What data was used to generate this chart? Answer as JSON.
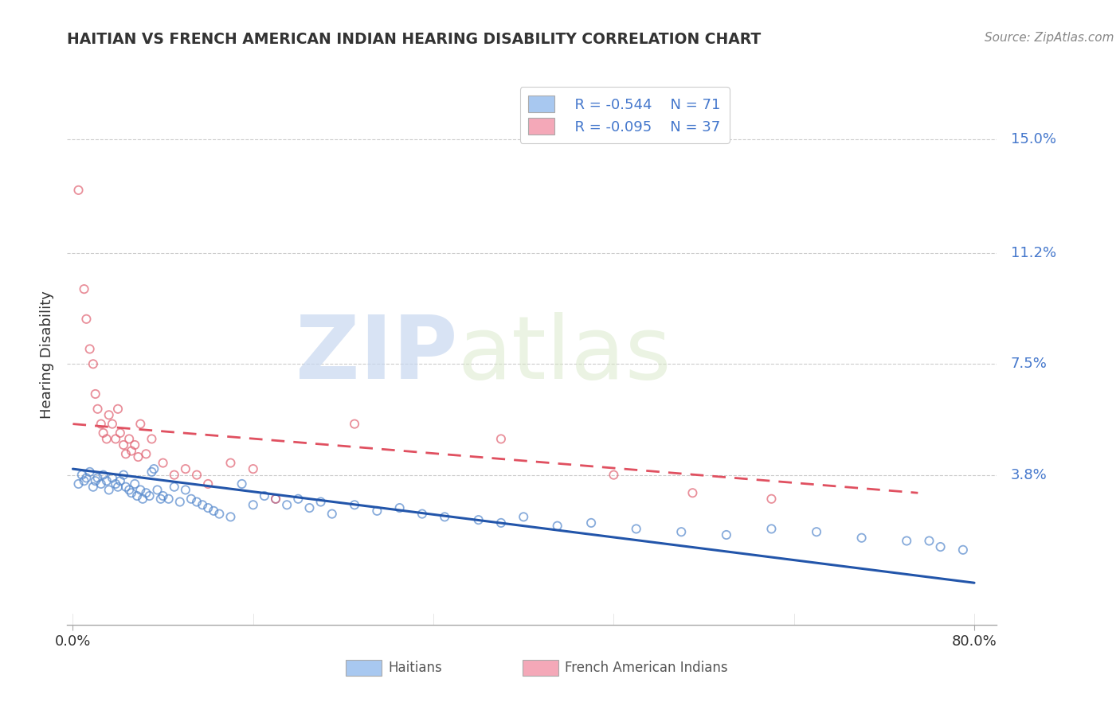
{
  "title": "HAITIAN VS FRENCH AMERICAN INDIAN HEARING DISABILITY CORRELATION CHART",
  "source": "Source: ZipAtlas.com",
  "ylabel": "Hearing Disability",
  "ytick_labels": [
    "15.0%",
    "11.2%",
    "7.5%",
    "3.8%"
  ],
  "ytick_values": [
    0.15,
    0.112,
    0.075,
    0.038
  ],
  "xtick_labels": [
    "0.0%",
    "80.0%"
  ],
  "xtick_values": [
    0.0,
    0.8
  ],
  "xmin": -0.005,
  "xmax": 0.82,
  "ymin": -0.012,
  "ymax": 0.168,
  "blue_color": "#A8C8F0",
  "pink_color": "#F4A8B8",
  "blue_edge_color": "#5588CC",
  "pink_edge_color": "#E06070",
  "blue_line_color": "#2255AA",
  "pink_line_color": "#E05060",
  "tick_label_color": "#4477CC",
  "legend_R1": "R = -0.544",
  "legend_N1": "N = 71",
  "legend_R2": "R = -0.095",
  "legend_N2": "N = 37",
  "watermark_zip": "ZIP",
  "watermark_atlas": "atlas",
  "blue_line_x": [
    0.0,
    0.8
  ],
  "blue_line_y": [
    0.04,
    0.002
  ],
  "pink_line_x": [
    0.0,
    0.75
  ],
  "pink_line_y": [
    0.055,
    0.032
  ],
  "blue_scatter_x": [
    0.005,
    0.008,
    0.01,
    0.012,
    0.015,
    0.018,
    0.02,
    0.022,
    0.025,
    0.027,
    0.03,
    0.032,
    0.035,
    0.038,
    0.04,
    0.042,
    0.045,
    0.047,
    0.05,
    0.052,
    0.055,
    0.057,
    0.06,
    0.062,
    0.065,
    0.068,
    0.07,
    0.072,
    0.075,
    0.078,
    0.08,
    0.085,
    0.09,
    0.095,
    0.1,
    0.105,
    0.11,
    0.115,
    0.12,
    0.125,
    0.13,
    0.14,
    0.15,
    0.16,
    0.17,
    0.18,
    0.19,
    0.2,
    0.21,
    0.22,
    0.23,
    0.25,
    0.27,
    0.29,
    0.31,
    0.33,
    0.36,
    0.38,
    0.4,
    0.43,
    0.46,
    0.5,
    0.54,
    0.58,
    0.62,
    0.66,
    0.7,
    0.74,
    0.76,
    0.77,
    0.79
  ],
  "blue_scatter_y": [
    0.035,
    0.038,
    0.036,
    0.037,
    0.039,
    0.034,
    0.036,
    0.037,
    0.035,
    0.038,
    0.036,
    0.033,
    0.037,
    0.035,
    0.034,
    0.036,
    0.038,
    0.034,
    0.033,
    0.032,
    0.035,
    0.031,
    0.033,
    0.03,
    0.032,
    0.031,
    0.039,
    0.04,
    0.033,
    0.03,
    0.031,
    0.03,
    0.034,
    0.029,
    0.033,
    0.03,
    0.029,
    0.028,
    0.027,
    0.026,
    0.025,
    0.024,
    0.035,
    0.028,
    0.031,
    0.03,
    0.028,
    0.03,
    0.027,
    0.029,
    0.025,
    0.028,
    0.026,
    0.027,
    0.025,
    0.024,
    0.023,
    0.022,
    0.024,
    0.021,
    0.022,
    0.02,
    0.019,
    0.018,
    0.02,
    0.019,
    0.017,
    0.016,
    0.016,
    0.014,
    0.013
  ],
  "pink_scatter_x": [
    0.005,
    0.01,
    0.012,
    0.015,
    0.018,
    0.02,
    0.022,
    0.025,
    0.027,
    0.03,
    0.032,
    0.035,
    0.038,
    0.04,
    0.042,
    0.045,
    0.047,
    0.05,
    0.052,
    0.055,
    0.058,
    0.06,
    0.065,
    0.07,
    0.08,
    0.09,
    0.1,
    0.11,
    0.12,
    0.14,
    0.16,
    0.18,
    0.25,
    0.38,
    0.48,
    0.55,
    0.62
  ],
  "pink_scatter_y": [
    0.133,
    0.1,
    0.09,
    0.08,
    0.075,
    0.065,
    0.06,
    0.055,
    0.052,
    0.05,
    0.058,
    0.055,
    0.05,
    0.06,
    0.052,
    0.048,
    0.045,
    0.05,
    0.046,
    0.048,
    0.044,
    0.055,
    0.045,
    0.05,
    0.042,
    0.038,
    0.04,
    0.038,
    0.035,
    0.042,
    0.04,
    0.03,
    0.055,
    0.05,
    0.038,
    0.032,
    0.03
  ]
}
